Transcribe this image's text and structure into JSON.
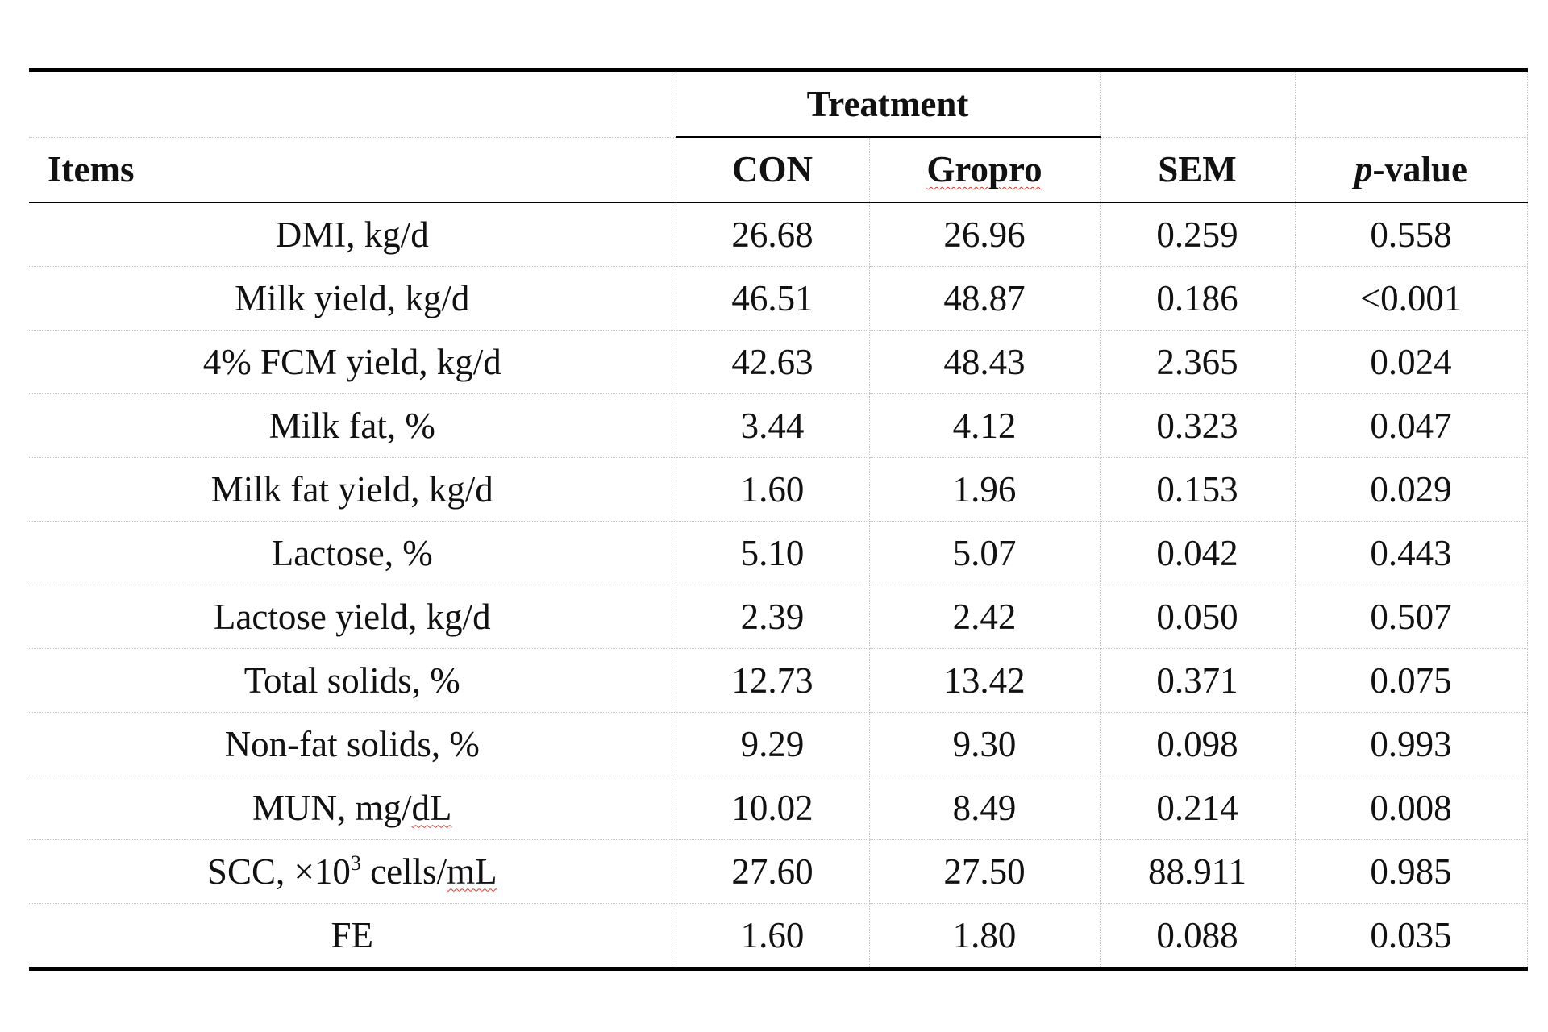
{
  "table": {
    "header": {
      "group_label": "Treatment",
      "items_label": "Items",
      "con_label": "CON",
      "gropro_label": "Gropro",
      "sem_label": "SEM",
      "pvalue_prefix": "p",
      "pvalue_suffix": "-value"
    },
    "rows": [
      {
        "item": "DMI, kg/d",
        "con": "26.68",
        "gropro": "26.96",
        "sem": "0.259",
        "p": "0.558"
      },
      {
        "item": "Milk yield, kg/d",
        "con": "46.51",
        "gropro": "48.87",
        "sem": "0.186",
        "p": "<0.001"
      },
      {
        "item": "4% FCM yield, kg/d",
        "con": "42.63",
        "gropro": "48.43",
        "sem": "2.365",
        "p": "0.024"
      },
      {
        "item": "Milk fat, %",
        "con": "3.44",
        "gropro": "4.12",
        "sem": "0.323",
        "p": "0.047"
      },
      {
        "item": "Milk fat yield, kg/d",
        "con": "1.60",
        "gropro": "1.96",
        "sem": "0.153",
        "p": "0.029"
      },
      {
        "item": "Lactose, %",
        "con": "5.10",
        "gropro": "5.07",
        "sem": "0.042",
        "p": "0.443"
      },
      {
        "item": "Lactose yield, kg/d",
        "con": "2.39",
        "gropro": "2.42",
        "sem": "0.050",
        "p": "0.507"
      },
      {
        "item": "Total solids, %",
        "con": "12.73",
        "gropro": "13.42",
        "sem": "0.371",
        "p": "0.075"
      },
      {
        "item": "Non-fat solids, %",
        "con": "9.29",
        "gropro": "9.30",
        "sem": "0.098",
        "p": "0.993"
      },
      {
        "item_prefix": "MUN, mg/",
        "item_squig": "dL",
        "con": "10.02",
        "gropro": "8.49",
        "sem": "0.214",
        "p": "0.008"
      },
      {
        "item_prefix": "SCC, ×10",
        "item_sup": "3",
        "item_mid": " cells/",
        "item_squig": "mL",
        "con": "27.60",
        "gropro": "27.50",
        "sem": "88.911",
        "p": "0.985"
      },
      {
        "item": "FE",
        "con": "1.60",
        "gropro": "1.80",
        "sem": "0.088",
        "p": "0.035"
      }
    ]
  }
}
